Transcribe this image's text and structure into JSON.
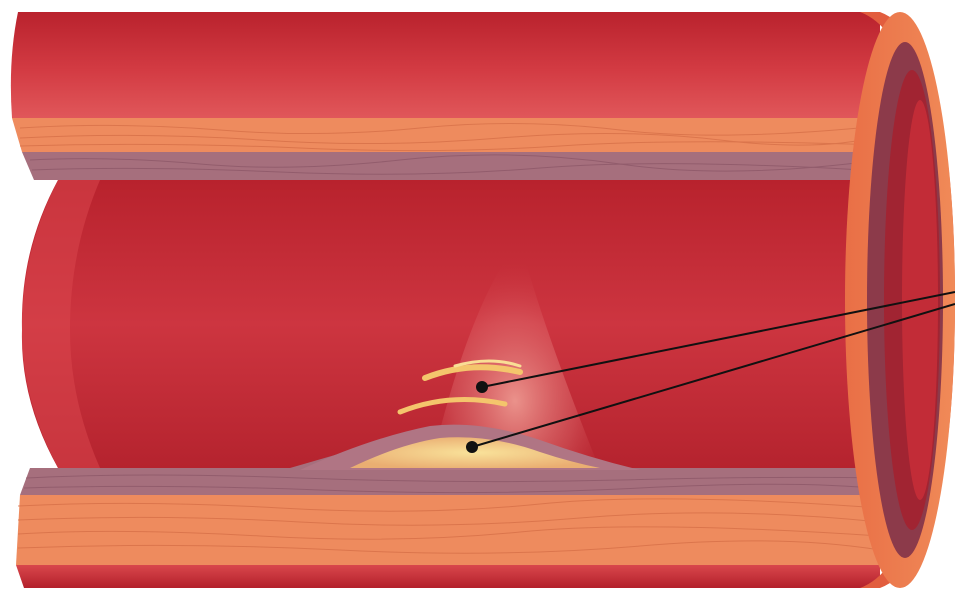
{
  "diagram": {
    "labels": [],
    "colors": {
      "vessel_wall_outer": "#cc3a3f",
      "vessel_wall_highlight": "#e3585a",
      "adventitia": "#ed8a5c",
      "adventitia_line": "#d8704a",
      "intima": "#a46e7d",
      "lumen": "#c72f39",
      "lumen_dark": "#9e1f2a",
      "plaque_core": "#f5d479",
      "plaque_stripe": "#f2c167",
      "pointer_line": "#111111"
    }
  }
}
